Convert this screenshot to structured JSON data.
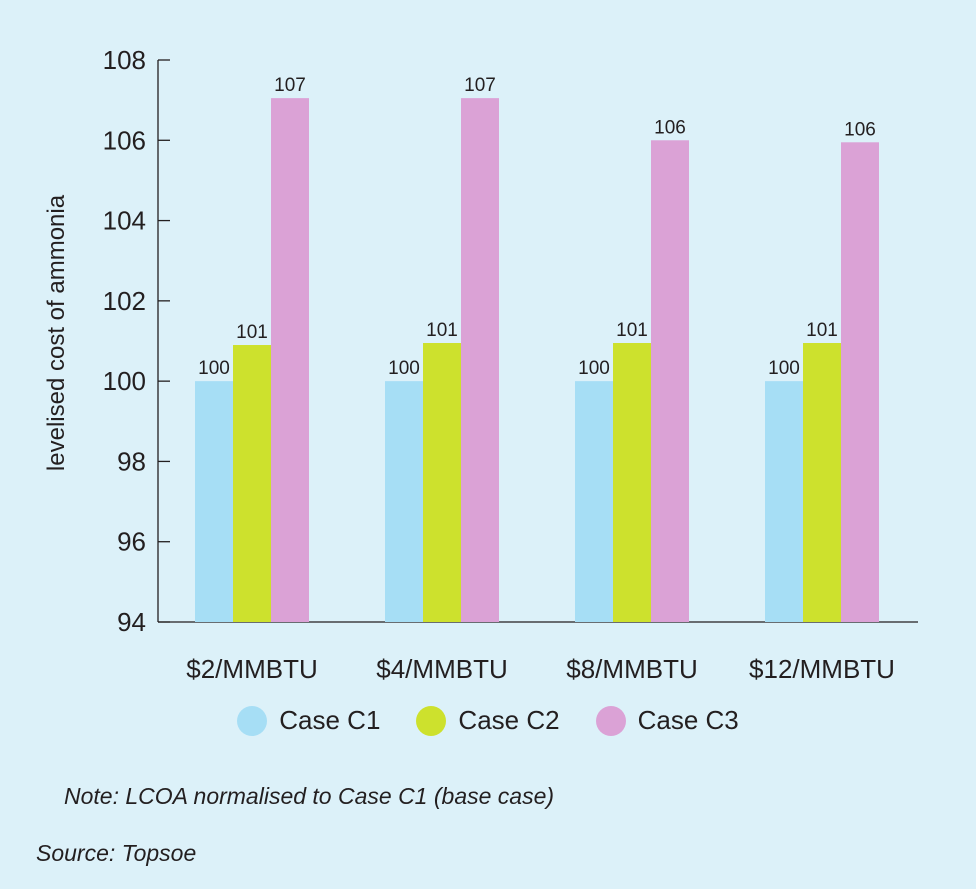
{
  "chart_data": {
    "type": "bar",
    "title": "",
    "xlabel": "",
    "ylabel": "levelised cost of ammonia",
    "categories": [
      "$2/MMBTU",
      "$4/MMBTU",
      "$8/MMBTU",
      "$12/MMBTU"
    ],
    "series": [
      {
        "name": "Case C1",
        "color": "#a6def5",
        "values": [
          100,
          100,
          100,
          100
        ]
      },
      {
        "name": "Case C2",
        "color": "#cde12d",
        "values": [
          100.9,
          100.95,
          100.95,
          100.95
        ],
        "labels": [
          "101",
          "101",
          "101",
          "101"
        ]
      },
      {
        "name": "Case C3",
        "color": "#dba2d6",
        "values": [
          107.05,
          107.05,
          106.0,
          105.95
        ],
        "labels": [
          "107",
          "107",
          "106",
          "106"
        ]
      }
    ],
    "ylim": [
      94,
      108
    ],
    "yticks": [
      94,
      96,
      98,
      100,
      102,
      104,
      106,
      108
    ],
    "grid": false,
    "legend_position": "bottom-center"
  },
  "legend": {
    "items": [
      {
        "label": "Case C1",
        "color": "#a6def5"
      },
      {
        "label": "Case C2",
        "color": "#cde12d"
      },
      {
        "label": "Case C3",
        "color": "#dba2d6"
      }
    ]
  },
  "note": "Note: LCOA normalised to Case C1 (base case)",
  "source": "Source: Topsoe"
}
